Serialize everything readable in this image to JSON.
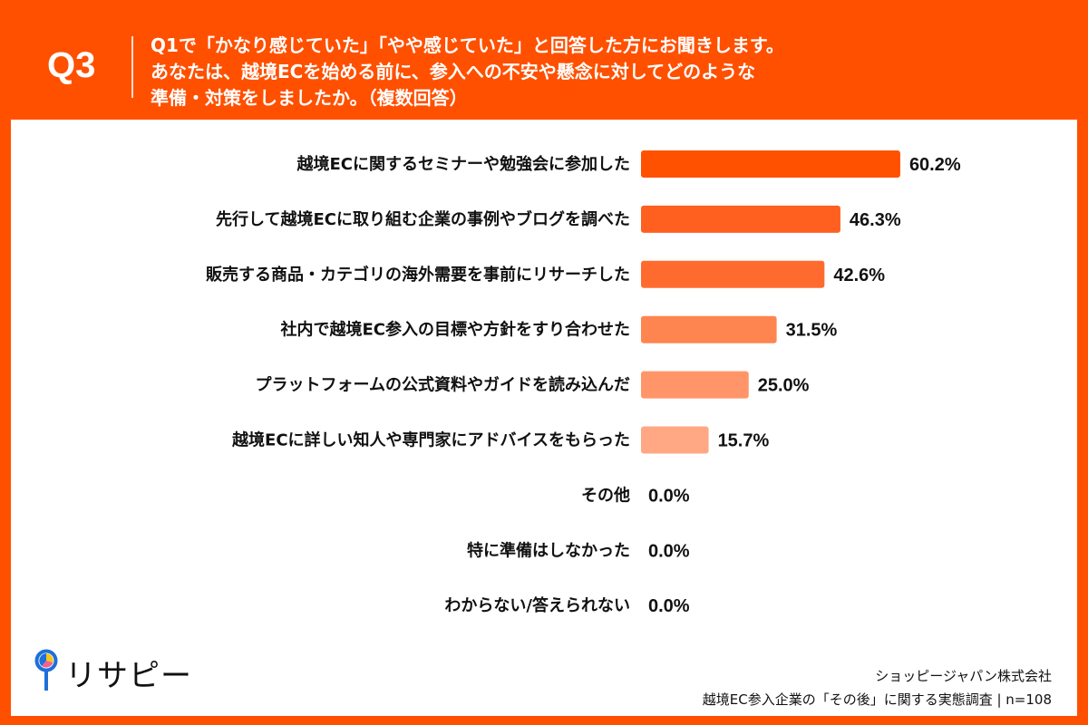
{
  "header": {
    "question_number": "Q3",
    "question_lines": [
      "Q1で「かなり感じていた」「やや感じていた」と回答した方にお聞きします。",
      "あなたは、越境ECを始める前に、参入への不安や懸念に対してどのような",
      "準備・対策をしましたか。（複数回答）"
    ]
  },
  "colors": {
    "background": "#FF5000",
    "bars": [
      "#FF5100",
      "#FF5F1F",
      "#FF6B2E",
      "#FF8550",
      "#FF9568",
      "#FFA883",
      "#FFB999",
      "#FFC7AD",
      "#FFD4C0"
    ]
  },
  "chart_data": {
    "type": "bar",
    "orientation": "horizontal",
    "unit": "%",
    "categories": [
      "越境ECに関するセミナーや勉強会に参加した",
      "先行して越境ECに取り組む企業の事例やブログを調べた",
      "販売する商品・カテゴリの海外需要を事前にリサーチした",
      "社内で越境EC参入の目標や方針をすり合わせた",
      "プラットフォームの公式資料やガイドを読み込んだ",
      "越境ECに詳しい知人や専門家にアドバイスをもらった",
      "その他",
      "特に準備はしなかった",
      "わからない/答えられない"
    ],
    "values": [
      60.2,
      46.3,
      42.6,
      31.5,
      25.0,
      15.7,
      0.0,
      0.0,
      0.0
    ],
    "value_labels": [
      "60.2%",
      "46.3%",
      "42.6%",
      "31.5%",
      "25.0%",
      "15.7%",
      "0.0%",
      "0.0%",
      "0.0%"
    ],
    "xlim": [
      0,
      100
    ],
    "grid": false
  },
  "footer": {
    "logo_text": "リサピー",
    "company": "ショッピージャパン株式会社",
    "survey": "越境EC参入企業の「その後」に関する実態調査 | n=108"
  }
}
